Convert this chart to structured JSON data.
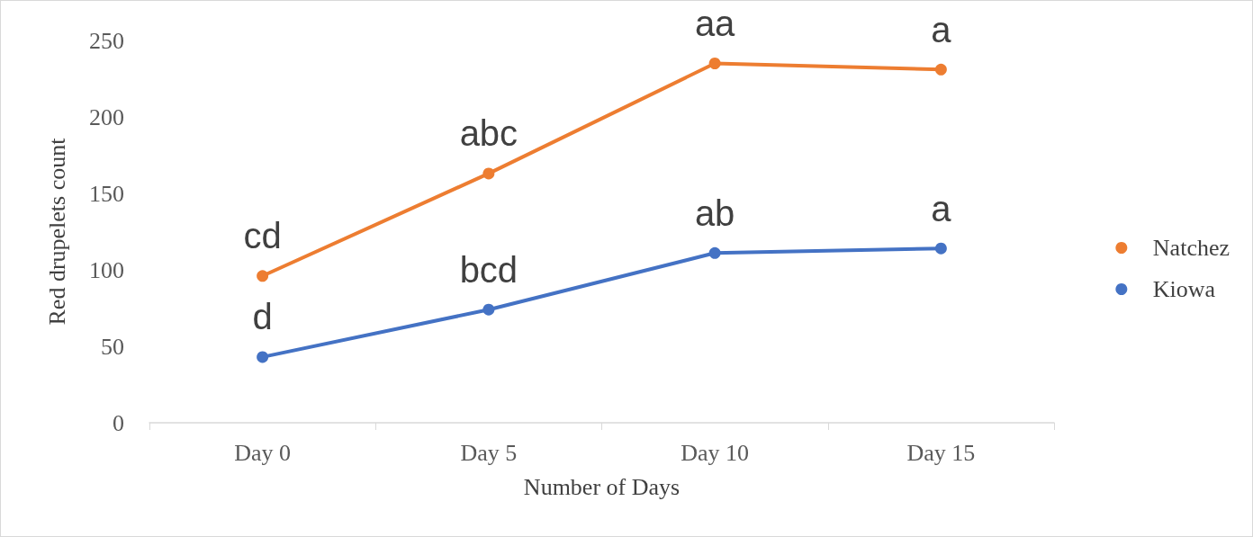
{
  "chart_data": {
    "type": "line",
    "xlabel": "Number of Days",
    "ylabel": "Red drupelets count",
    "categories": [
      "Day 0",
      "Day 5",
      "Day 10",
      "Day 15"
    ],
    "series": [
      {
        "name": "Natchez",
        "color": "#ed7d31",
        "values": [
          96,
          163,
          235,
          231
        ],
        "value_labels": [
          "cd",
          "abc",
          "aa",
          "a"
        ]
      },
      {
        "name": "Kiowa",
        "color": "#4472c4",
        "values": [
          43,
          74,
          111,
          114
        ],
        "value_labels": [
          "d",
          "bcd",
          "ab",
          "a"
        ]
      }
    ],
    "ylim": [
      0,
      250
    ],
    "yticks": [
      0,
      50,
      100,
      150,
      200,
      250
    ],
    "grid": false,
    "legend": "right",
    "marker": "circle",
    "line_style": "solid"
  }
}
